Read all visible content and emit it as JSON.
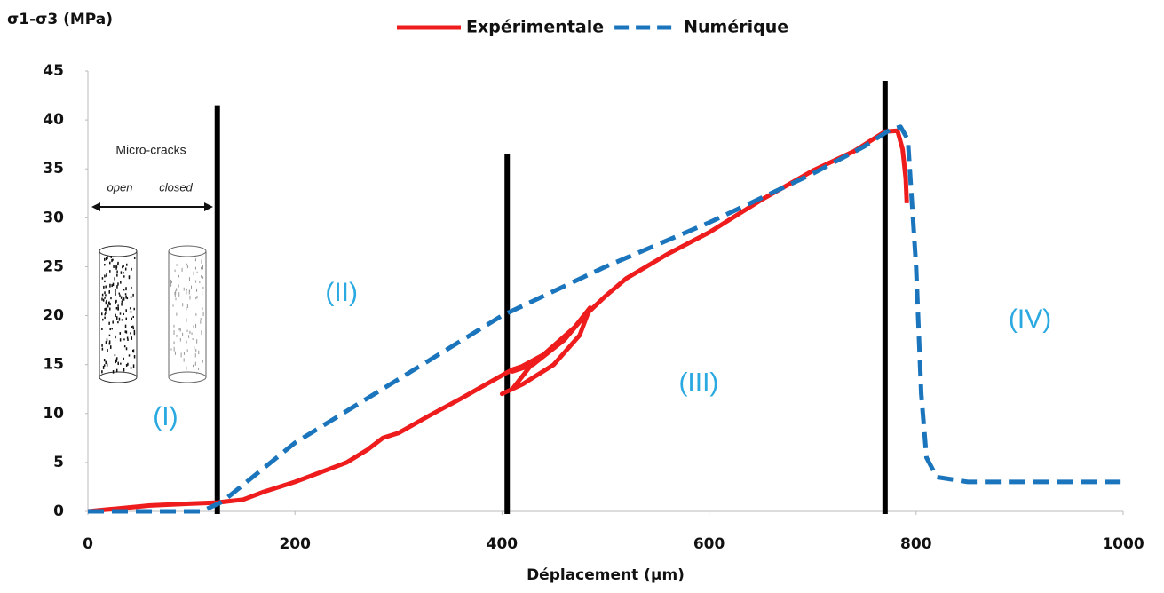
{
  "chart_data": {
    "type": "line",
    "y_label": "σ1-σ3 (MPa)",
    "x_label": "Déplacement (µm)",
    "xlim": [
      0,
      1000
    ],
    "xticks": [
      0,
      200,
      400,
      600,
      800,
      1000
    ],
    "ylim": [
      0,
      45
    ],
    "yticks": [
      0,
      5,
      10,
      15,
      20,
      25,
      30,
      35,
      40,
      45
    ],
    "series": [
      {
        "name": "Expérimentale",
        "color": "#ee1c1c",
        "style": "solid",
        "x": [
          0,
          20,
          60,
          100,
          125,
          150,
          170,
          200,
          230,
          250,
          270,
          285,
          300,
          330,
          360,
          390,
          410,
          430,
          410,
          400,
          420,
          450,
          475,
          485,
          470,
          440,
          410,
          430,
          460,
          480,
          500,
          520,
          560,
          600,
          650,
          700,
          740,
          770,
          782,
          787,
          790,
          791
        ],
        "values": [
          0,
          0.2,
          0.6,
          0.8,
          0.9,
          1.2,
          2,
          3,
          4.2,
          5,
          6.3,
          7.5,
          8,
          9.8,
          11.5,
          13.3,
          14.5,
          15.2,
          12.5,
          12,
          13,
          15,
          18,
          20.8,
          18.8,
          16,
          14.3,
          15,
          17.5,
          20,
          22,
          23.8,
          26.3,
          28.5,
          31.8,
          34.8,
          36.8,
          38.8,
          38.9,
          37,
          34,
          31.5
        ]
      },
      {
        "name": "Numérique",
        "color": "#1b75bc",
        "style": "dashed",
        "x": [
          0,
          110,
          130,
          200,
          300,
          400,
          500,
          600,
          700,
          750,
          775,
          785,
          792,
          800,
          805,
          810,
          820,
          850,
          900,
          1000
        ],
        "values": [
          0,
          0,
          1,
          7,
          13.5,
          20,
          25,
          29.5,
          34.5,
          37.3,
          39,
          39.3,
          38,
          25,
          12,
          5.5,
          3.5,
          3,
          3,
          3
        ]
      }
    ],
    "vertical_lines": [
      {
        "x": 125,
        "top": 41.5
      },
      {
        "x": 405,
        "top": 36.5
      },
      {
        "x": 770,
        "top": 44
      }
    ],
    "annotations": [
      {
        "text": "(I)",
        "x": 75,
        "y": 9.5
      },
      {
        "text": "(II)",
        "x": 245,
        "y": 22.2
      },
      {
        "text": "(III)",
        "x": 590,
        "y": 13
      },
      {
        "text": "(IV)",
        "x": 910,
        "y": 19.5
      }
    ],
    "inset": {
      "title": "Micro-cracks",
      "left": "open",
      "right": "closed"
    }
  }
}
